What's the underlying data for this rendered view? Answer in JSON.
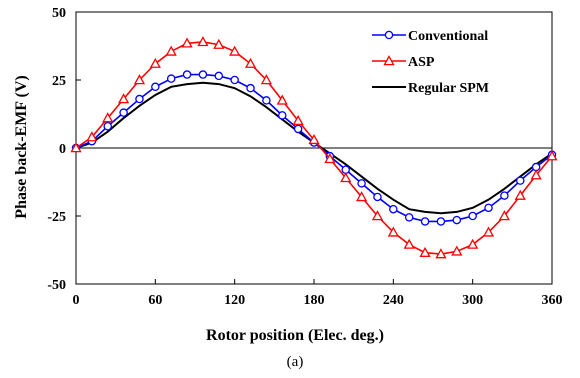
{
  "chart_data": {
    "type": "line",
    "caption": "(a)",
    "xlabel": "Rotor position (Elec. deg.)",
    "ylabel": "Phase back-EMF (V)",
    "xlim": [
      0,
      360
    ],
    "ylim": [
      -50,
      50
    ],
    "xticks": [
      0,
      60,
      120,
      180,
      240,
      300,
      360
    ],
    "yticks": [
      50,
      25,
      0,
      -25,
      -50
    ],
    "xtick_labels": [
      "0",
      "60",
      "120",
      "180",
      "240",
      "300",
      "360"
    ],
    "ytick_labels": [
      "50",
      "25",
      "0",
      "-25",
      "-50"
    ],
    "grid": false,
    "legend_position": "top-right",
    "series": [
      {
        "name": "Conventional",
        "color": "#0000ff",
        "marker": "circle",
        "x": [
          0,
          12,
          24,
          36,
          48,
          60,
          72,
          84,
          96,
          108,
          120,
          132,
          144,
          156,
          168,
          180,
          192,
          204,
          216,
          228,
          240,
          252,
          264,
          276,
          288,
          300,
          312,
          324,
          336,
          348,
          360
        ],
        "y": [
          0,
          2.5,
          8,
          13,
          18,
          22.5,
          25.5,
          27,
          27,
          26.5,
          25,
          22,
          17.5,
          12,
          7,
          2,
          -3,
          -8,
          -13,
          -18,
          -22.5,
          -25.5,
          -27,
          -27,
          -26.5,
          -25,
          -22,
          -17.5,
          -12,
          -7,
          -2.5
        ]
      },
      {
        "name": "ASP",
        "color": "#ff0000",
        "marker": "triangle",
        "x": [
          0,
          12,
          24,
          36,
          48,
          60,
          72,
          84,
          96,
          108,
          120,
          132,
          144,
          156,
          168,
          180,
          192,
          204,
          216,
          228,
          240,
          252,
          264,
          276,
          288,
          300,
          312,
          324,
          336,
          348,
          360
        ],
        "y": [
          0,
          4,
          11,
          18,
          25,
          31,
          35.5,
          38.5,
          39,
          38,
          35.5,
          31,
          25,
          17.5,
          10,
          3,
          -4,
          -11,
          -18,
          -25,
          -31,
          -35.5,
          -38.5,
          -39,
          -38,
          -35.5,
          -31,
          -25,
          -17.5,
          -10,
          -3
        ]
      },
      {
        "name": "Regular SPM",
        "color": "#000000",
        "marker": "none",
        "x": [
          0,
          12,
          24,
          36,
          48,
          60,
          72,
          84,
          96,
          108,
          120,
          132,
          144,
          156,
          168,
          180,
          192,
          204,
          216,
          228,
          240,
          252,
          264,
          276,
          288,
          300,
          312,
          324,
          336,
          348,
          360
        ],
        "y": [
          0,
          2,
          6,
          11,
          15.5,
          19.5,
          22.5,
          23.5,
          24,
          23.5,
          22,
          19,
          15,
          10.5,
          6,
          2,
          -2,
          -6,
          -10.5,
          -15,
          -19,
          -22.5,
          -23.5,
          -24,
          -23.5,
          -22,
          -19,
          -15,
          -10.5,
          -6,
          -2
        ]
      }
    ]
  }
}
